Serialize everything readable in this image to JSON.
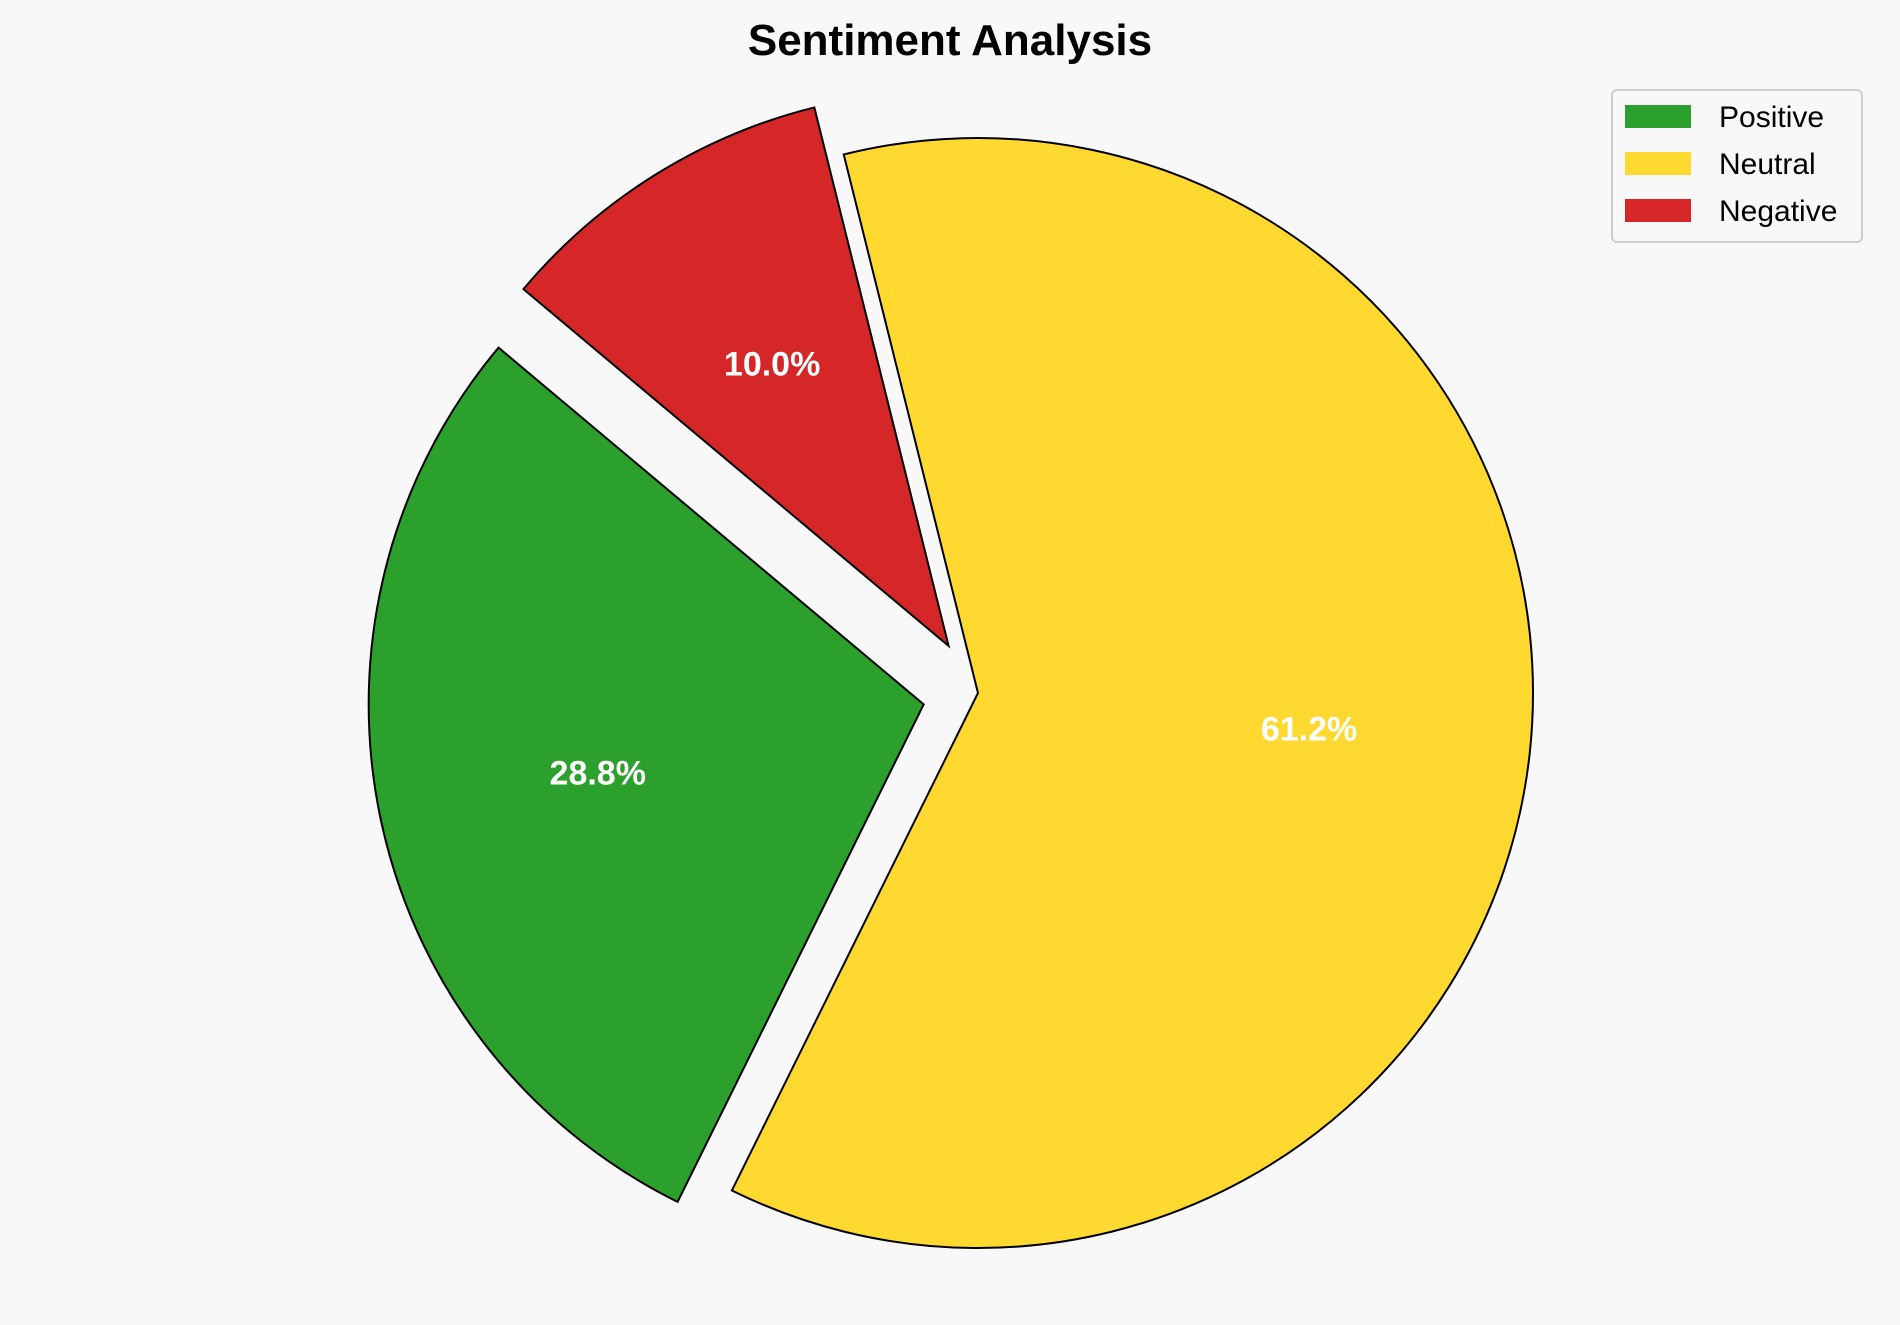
{
  "chart_data": {
    "type": "pie",
    "title": "Sentiment Analysis",
    "categories": [
      "Positive",
      "Neutral",
      "Negative"
    ],
    "values": [
      28.8,
      61.2,
      10.0
    ],
    "labels": [
      "28.8%",
      "61.2%",
      "10.0%"
    ],
    "colors": [
      "#2ca02c",
      "#ffd92f",
      "#d62728"
    ],
    "explode": [
      0.1,
      0,
      0.1
    ],
    "start_angle": 140,
    "edge_color": "#000000",
    "legend_position": "top-right"
  }
}
